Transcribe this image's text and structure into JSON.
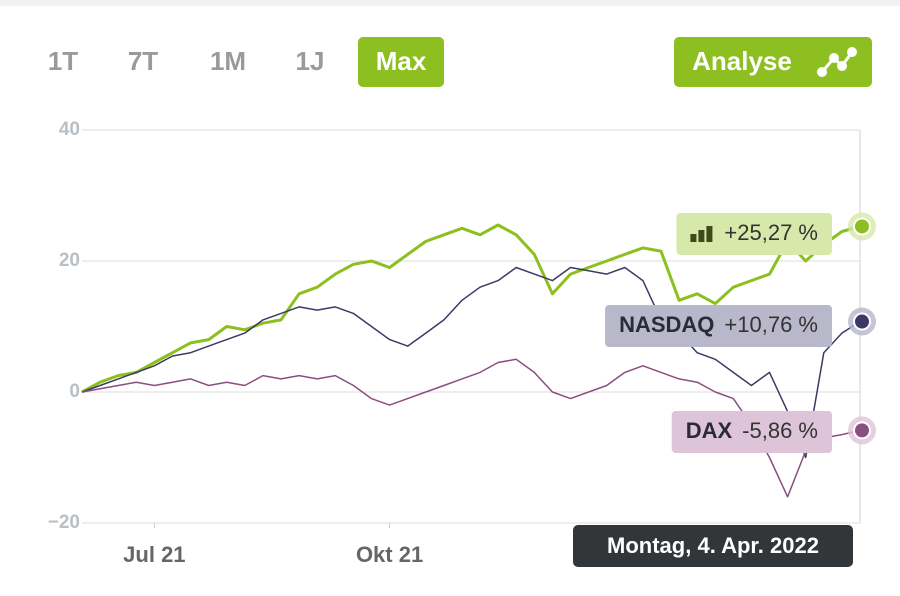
{
  "buttons": [
    "1T",
    "7T",
    "1M",
    "1J",
    "Max"
  ],
  "active_button": "Max",
  "analyse_button": "Analyse",
  "tooltip": "Montag, 4. Apr. 2022",
  "chart_data": {
    "type": "line",
    "xticks": [
      {
        "value": 4,
        "label": "Jul 21"
      },
      {
        "value": 17,
        "label": "Okt 21"
      }
    ],
    "xlim": [
      0,
      43
    ],
    "ylim": [
      -20,
      40
    ],
    "yticks": [
      40,
      20,
      0,
      {
        "value": -20,
        "label": "−20"
      }
    ],
    "grid": true,
    "series": [
      {
        "color": "#8cbf1f",
        "width": 3,
        "end_label": "+25,27 %",
        "label_bg": "#d6e9aa",
        "values": [
          0,
          1.5,
          2.5,
          3,
          4.5,
          6,
          7.5,
          8,
          10,
          9.5,
          10.5,
          11,
          15,
          16,
          18,
          19.5,
          20,
          19,
          21,
          23,
          24,
          25,
          24,
          25.5,
          24,
          21,
          15,
          18,
          19,
          20,
          21,
          22,
          21.5,
          14,
          15,
          13.5,
          16,
          17,
          18,
          23,
          20,
          22.5,
          24.5,
          25.27
        ]
      },
      {
        "name": "NASDAQ",
        "color": "#3b3a66",
        "width": 1.5,
        "end_label": "+10,76 %",
        "label_bg": "#b9b7ca",
        "values": [
          0,
          1,
          2,
          3,
          4,
          5.5,
          6,
          7,
          8,
          9,
          11,
          12,
          13,
          12.5,
          13,
          12,
          10,
          8,
          7,
          9,
          11,
          14,
          16,
          17,
          19,
          18,
          17,
          19,
          18.5,
          18,
          19,
          17,
          11,
          9,
          6,
          5,
          3,
          1,
          3,
          -3,
          -10,
          6,
          9,
          10.76
        ]
      },
      {
        "name": "DAX",
        "color": "#8a4f80",
        "width": 1.5,
        "end_label": "-5,86 %",
        "label_bg": "#ddc4d8",
        "values": [
          0,
          0.5,
          1,
          1.5,
          1,
          1.5,
          2,
          1,
          1.5,
          1,
          2.5,
          2,
          2.5,
          2,
          2.5,
          1,
          -1,
          -2,
          -1,
          0,
          1,
          2,
          3,
          4.5,
          5,
          3,
          0,
          -1,
          0,
          1,
          3,
          4,
          3,
          2,
          1.5,
          0,
          -1,
          -5,
          -10,
          -16,
          -9,
          -7,
          -6.5,
          -5.86
        ]
      }
    ]
  }
}
